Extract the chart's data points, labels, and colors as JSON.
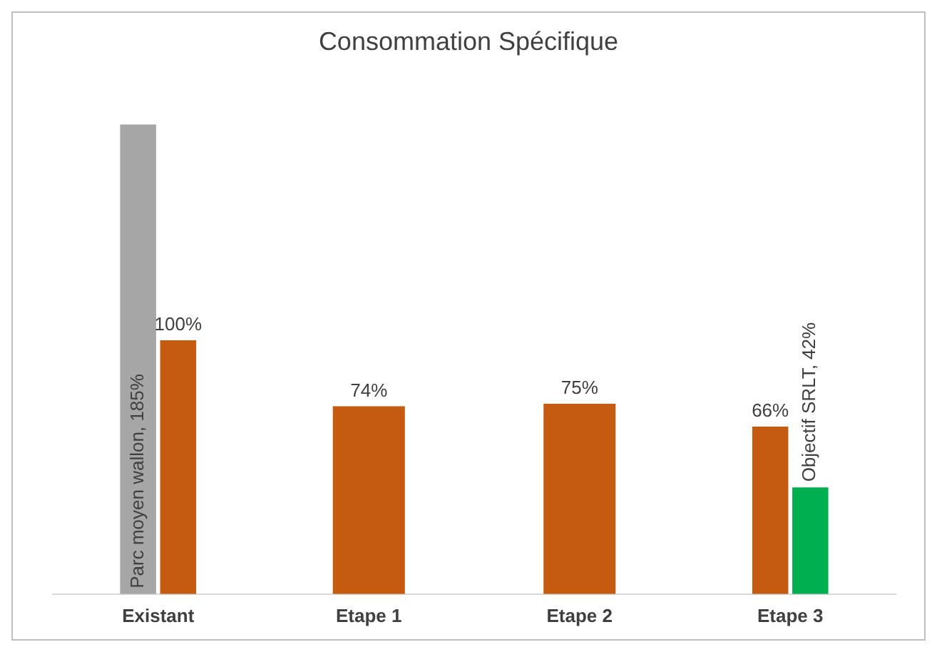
{
  "chart_data": {
    "type": "bar",
    "title": "Consommation Spécifique",
    "categories": [
      "Existant",
      "Etape 1",
      "Etape 2",
      "Etape 3"
    ],
    "series": [
      {
        "color": "#a6a6a6",
        "values": [
          185,
          null,
          null,
          null
        ],
        "value_labels": [
          "Parc moyen wallon, 185%",
          null,
          null,
          null
        ]
      },
      {
        "color": "#c55a11",
        "values": [
          100,
          74,
          75,
          66
        ],
        "value_labels": [
          "100%",
          "74%",
          "75%",
          "66%"
        ]
      },
      {
        "color": "#00b050",
        "values": [
          null,
          null,
          null,
          42
        ],
        "value_labels": [
          null,
          null,
          null,
          "Objectif SRLT, 42%"
        ]
      }
    ],
    "relative": false,
    "grid": false,
    "legend": false
  }
}
